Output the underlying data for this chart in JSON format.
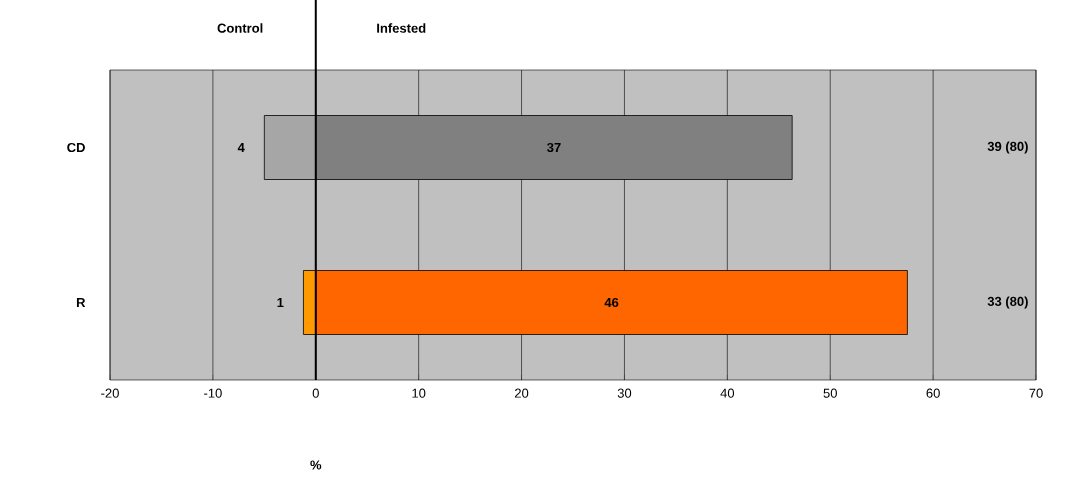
{
  "chart_data": {
    "type": "bar",
    "orientation": "horizontal",
    "xlabel": "%",
    "categories": [
      "CD",
      "R"
    ],
    "series": [
      {
        "colors": [
          "#a6a6a6",
          "#ff9900"
        ],
        "values": [
          -5,
          -1.2
        ]
      },
      {
        "colors": [
          "#808080",
          "#ff6600"
        ],
        "values": [
          46.3,
          57.5
        ]
      }
    ],
    "xlim": [
      -20,
      70
    ],
    "xticks": [
      -20,
      -10,
      0,
      10,
      20,
      30,
      40,
      50,
      60,
      70
    ],
    "grid": "x",
    "stacked": true,
    "ref_lines": [
      {
        "axis": "x",
        "value": 0,
        "label": null
      }
    ],
    "annotations": [
      "Control",
      "Infested",
      "39 (80)",
      "33 (80)",
      "4",
      "37",
      "1",
      "46"
    ]
  }
}
